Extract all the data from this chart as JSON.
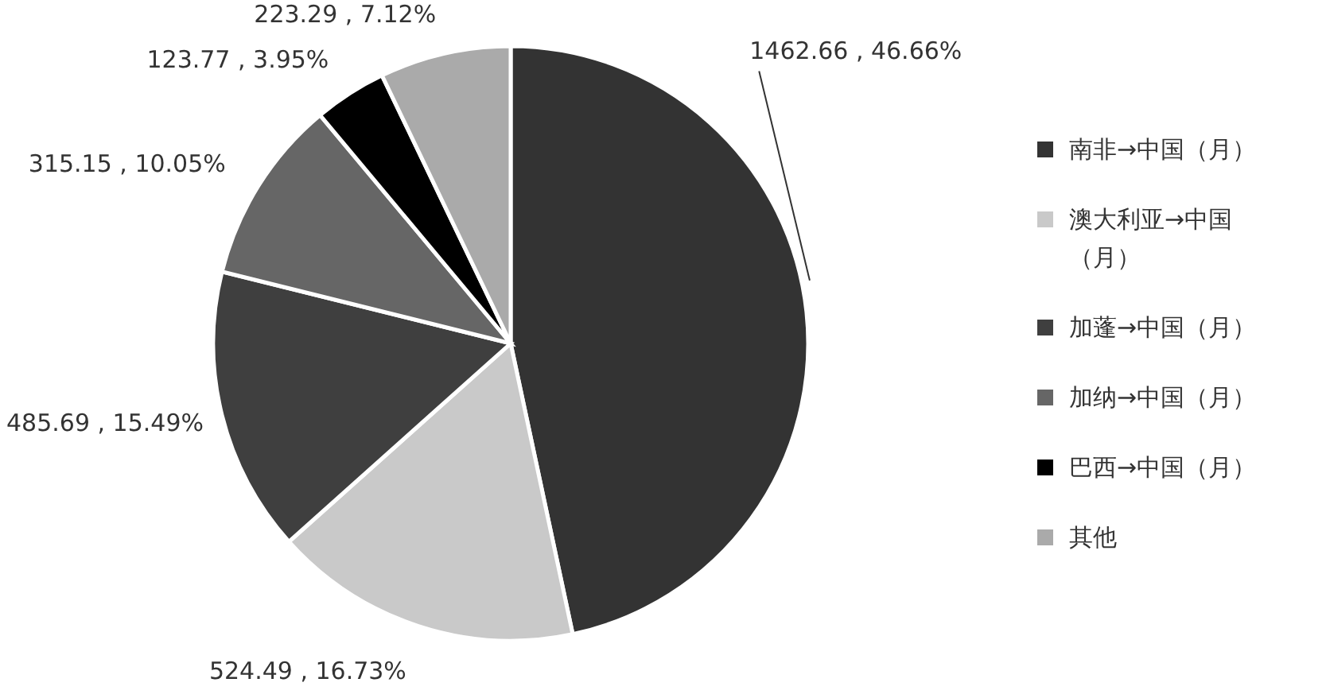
{
  "chart_data": {
    "type": "pie",
    "categories": [
      "南非→中国（月）",
      "澳大利亚→中国（月）",
      "加蓬→中国（月）",
      "加纳→中国（月）",
      "巴西→中国（月）",
      "其他"
    ],
    "values": [
      1462.66,
      524.49,
      485.69,
      315.15,
      123.77,
      223.29
    ],
    "value_labels": [
      "1462.66 , 46.66%",
      "524.49 , 16.73%",
      "485.69 , 15.49%",
      "315.15 , 10.05%",
      "123.77 , 3.95%",
      "223.29 , 7.12%"
    ],
    "colors": [
      "#333333",
      "#c9c9c9",
      "#3f3f3f",
      "#666666",
      "#000000",
      "#aaaaaa"
    ],
    "legend": "right"
  }
}
